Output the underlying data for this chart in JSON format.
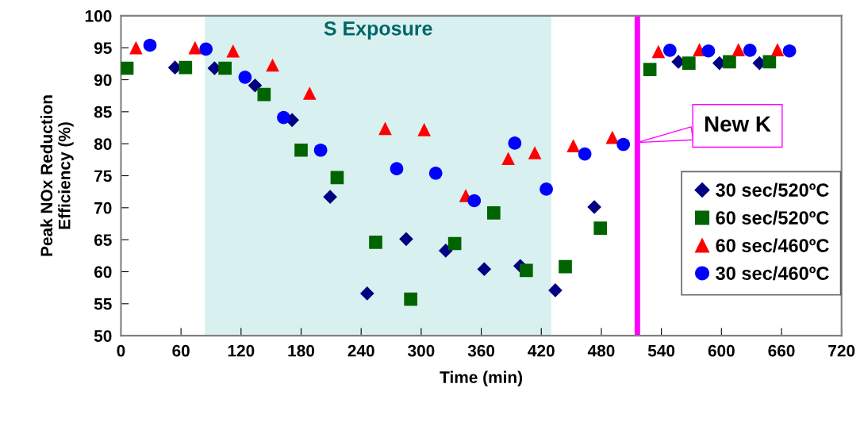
{
  "chart_data": {
    "type": "scatter",
    "xlabel": "Time (min)",
    "ylabel": "Peak NOx Reduction\nEfficiency (%)",
    "xlim": [
      0,
      720
    ],
    "xticks": [
      0,
      60,
      120,
      180,
      240,
      300,
      360,
      420,
      480,
      540,
      600,
      660,
      720
    ],
    "ylim": [
      50,
      100
    ],
    "yticks": [
      50,
      55,
      60,
      65,
      70,
      75,
      80,
      85,
      90,
      95,
      100
    ],
    "grid": false,
    "legend": "right",
    "bands": [
      {
        "axis": "x",
        "from": 84,
        "to": 430,
        "label": "S Exposure",
        "color": "#d9f0f0"
      }
    ],
    "ref_lines": [
      {
        "axis": "x",
        "value": 516,
        "label": "New K",
        "color": "#ff00ff"
      }
    ],
    "series": [
      {
        "name": "30 sec/520ºC",
        "color": "#000080",
        "marker": "diamond",
        "x": [
          54,
          93.5,
          134,
          171,
          209,
          246,
          285,
          324.5,
          363,
          399,
          434,
          473,
          557,
          598,
          638
        ],
        "values": [
          91.9,
          91.8,
          89.1,
          83.7,
          71.7,
          56.6,
          65.1,
          63.3,
          60.4,
          60.9,
          57.1,
          70.1,
          92.8,
          92.6,
          92.6
        ]
      },
      {
        "name": "60 sec/520ºC",
        "color": "#006400",
        "marker": "square",
        "x": [
          6,
          64.5,
          104,
          143,
          180,
          216,
          254.5,
          289.5,
          333.5,
          372.5,
          405,
          444,
          479,
          528.5,
          567.5,
          608,
          648
        ],
        "values": [
          91.8,
          91.9,
          91.8,
          87.7,
          79.0,
          74.7,
          64.6,
          55.7,
          64.4,
          69.2,
          60.2,
          60.8,
          66.8,
          91.6,
          92.6,
          92.8,
          92.8
        ]
      },
      {
        "name": "60 sec/460ºC",
        "color": "#ff0000",
        "marker": "triangle",
        "x": [
          15,
          74,
          112,
          151.5,
          188.5,
          264,
          303,
          344.5,
          387,
          413.5,
          452,
          491,
          537,
          578,
          617,
          656
        ],
        "values": [
          95.0,
          95.0,
          94.5,
          92.3,
          87.9,
          82.4,
          82.2,
          71.9,
          77.7,
          78.6,
          79.7,
          81.0,
          94.4,
          94.7,
          94.7,
          94.7
        ]
      },
      {
        "name": "30 sec/460ºC",
        "color": "#0000ff",
        "marker": "circle",
        "x": [
          29,
          85,
          124,
          162.5,
          199.5,
          275.5,
          314.5,
          353,
          393.5,
          425,
          463.5,
          502,
          548.5,
          587,
          628.5,
          668
        ],
        "values": [
          95.4,
          94.8,
          90.4,
          84.1,
          79.0,
          76.1,
          75.4,
          71.1,
          80.1,
          72.9,
          78.4,
          79.9,
          94.6,
          94.5,
          94.6,
          94.5
        ]
      }
    ]
  }
}
